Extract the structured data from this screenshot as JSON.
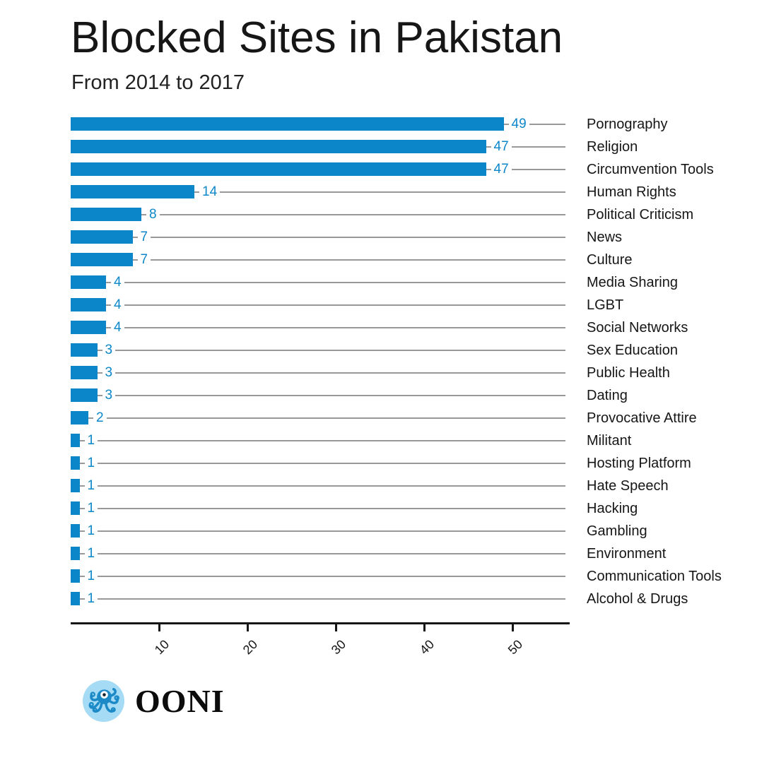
{
  "header": {
    "title": "Blocked Sites in Pakistan",
    "subtitle": "From 2014 to 2017"
  },
  "colors": {
    "bar": "#0b87c9",
    "value_label": "#0b87c9",
    "leader_line": "#999999",
    "axis": "#161616",
    "logo_circle": "#a5dbf5",
    "logo_octopus": "#1b8ac6"
  },
  "chart_data": {
    "type": "bar",
    "orientation": "horizontal",
    "title": "Blocked Sites in Pakistan",
    "subtitle": "From 2014 to 2017",
    "categories": [
      "Pornography",
      "Religion",
      "Circumvention Tools",
      "Human Rights",
      "Political Criticism",
      "News",
      "Culture",
      "Media Sharing",
      "LGBT",
      "Social Networks",
      "Sex Education",
      "Public Health",
      "Dating",
      "Provocative Attire",
      "Militant",
      "Hosting Platform",
      "Hate Speech",
      "Hacking",
      "Gambling",
      "Environment",
      "Communication Tools",
      "Alcohol & Drugs"
    ],
    "values": [
      49,
      47,
      47,
      14,
      8,
      7,
      7,
      4,
      4,
      4,
      3,
      3,
      3,
      2,
      1,
      1,
      1,
      1,
      1,
      1,
      1,
      1
    ],
    "xticks": [
      10,
      20,
      30,
      40,
      50
    ],
    "xlim": [
      0,
      56
    ],
    "xlabel": "",
    "ylabel": "",
    "grid": false,
    "legend": "none",
    "value_labels": "at-bar-end",
    "category_labels_position": "right"
  },
  "footer": {
    "logo_text": "OONI"
  }
}
